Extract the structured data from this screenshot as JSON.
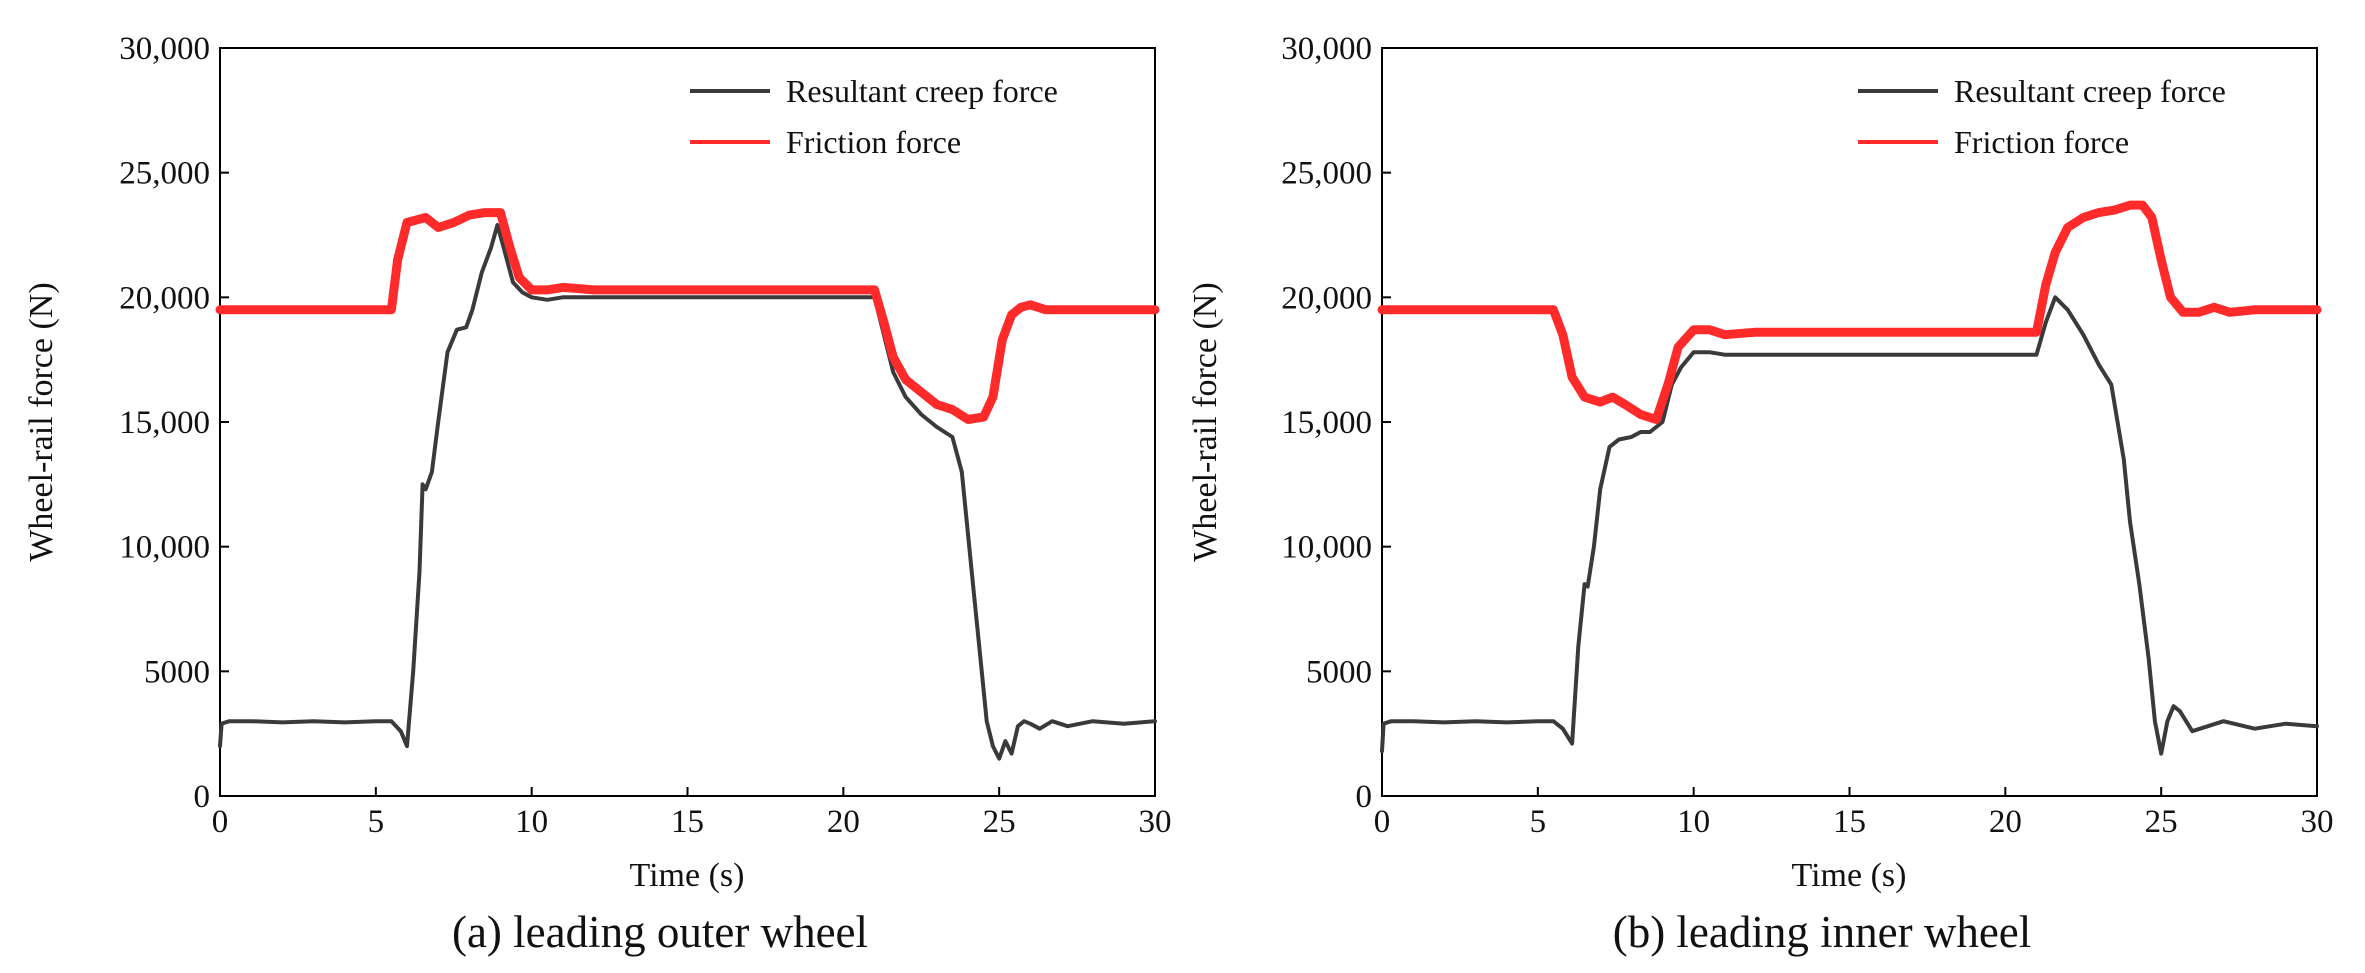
{
  "chart_data": [
    {
      "type": "line",
      "panel": "a",
      "title": "(a) leading outer wheel",
      "xlabel": "Time (s)",
      "ylabel": "Wheel-rail force (N)",
      "xlim": [
        0,
        30
      ],
      "ylim": [
        0,
        30000
      ],
      "x_ticks": [
        0,
        5,
        10,
        15,
        20,
        25,
        30
      ],
      "x_tick_labels": [
        "0",
        "5",
        "10",
        "15",
        "20",
        "25",
        "30"
      ],
      "y_ticks": [
        0,
        5000,
        10000,
        15000,
        20000,
        25000,
        30000
      ],
      "y_tick_labels": [
        "0",
        "5000",
        "10,000",
        "15,000",
        "20,000",
        "25,000",
        "30,000"
      ],
      "grid": false,
      "legend_position": "top-right",
      "series": [
        {
          "name": "Resultant creep force",
          "color": "#3a3a3a",
          "x": [
            0,
            0.05,
            0.3,
            1,
            2,
            3,
            4,
            5,
            5.5,
            5.8,
            6.0,
            6.2,
            6.4,
            6.5,
            6.6,
            6.8,
            7.0,
            7.3,
            7.6,
            7.9,
            8.1,
            8.4,
            8.7,
            8.9,
            9.1,
            9.4,
            9.7,
            10.0,
            10.5,
            11,
            12,
            14,
            16,
            18,
            20,
            21,
            21.3,
            21.6,
            22,
            22.5,
            23,
            23.5,
            23.8,
            24.0,
            24.2,
            24.4,
            24.6,
            24.8,
            25.0,
            25.2,
            25.4,
            25.6,
            25.8,
            26.0,
            26.3,
            26.7,
            27.2,
            28,
            29,
            30
          ],
          "values": [
            2000,
            2900,
            3000,
            3000,
            2950,
            3000,
            2950,
            3000,
            3000,
            2600,
            2000,
            5000,
            9000,
            12500,
            12300,
            13000,
            15000,
            17800,
            18700,
            18800,
            19500,
            21000,
            22000,
            22900,
            22000,
            20600,
            20200,
            20000,
            19900,
            20000,
            20000,
            20000,
            20000,
            20000,
            20000,
            20000,
            18500,
            17000,
            16000,
            15300,
            14800,
            14400,
            13000,
            10500,
            8000,
            5500,
            3000,
            2000,
            1500,
            2200,
            1700,
            2800,
            3000,
            2900,
            2700,
            3000,
            2800,
            3000,
            2900,
            3000
          ]
        },
        {
          "name": "Friction force",
          "color": "#ff2a2a",
          "x": [
            0,
            1,
            2,
            3,
            4,
            5,
            5.5,
            5.7,
            6.0,
            6.3,
            6.6,
            7.0,
            7.5,
            8.0,
            8.5,
            9.0,
            9.3,
            9.6,
            10.0,
            10.5,
            11,
            12,
            14,
            16,
            18,
            20,
            21,
            21.3,
            21.6,
            22,
            22.5,
            23,
            23.5,
            24,
            24.5,
            24.8,
            25.1,
            25.4,
            25.7,
            26.0,
            26.5,
            27,
            28,
            29,
            30
          ],
          "values": [
            19500,
            19500,
            19500,
            19500,
            19500,
            19500,
            19500,
            21500,
            23000,
            23100,
            23200,
            22800,
            23000,
            23300,
            23400,
            23400,
            22000,
            20800,
            20300,
            20300,
            20400,
            20300,
            20300,
            20300,
            20300,
            20300,
            20300,
            19000,
            17600,
            16700,
            16200,
            15700,
            15500,
            15100,
            15200,
            16000,
            18300,
            19300,
            19600,
            19700,
            19500,
            19500,
            19500,
            19500,
            19500
          ]
        }
      ]
    },
    {
      "type": "line",
      "panel": "b",
      "title": "(b) leading inner wheel",
      "xlabel": "Time (s)",
      "ylabel": "Wheel-rail force (N)",
      "xlim": [
        0,
        30
      ],
      "ylim": [
        0,
        30000
      ],
      "x_ticks": [
        0,
        5,
        10,
        15,
        20,
        25,
        30
      ],
      "x_tick_labels": [
        "0",
        "5",
        "10",
        "15",
        "20",
        "25",
        "30"
      ],
      "y_ticks": [
        0,
        5000,
        10000,
        15000,
        20000,
        25000,
        30000
      ],
      "y_tick_labels": [
        "0",
        "5000",
        "10,000",
        "15,000",
        "20,000",
        "25,000",
        "30,000"
      ],
      "grid": false,
      "legend_position": "top-right",
      "series": [
        {
          "name": "Resultant creep force",
          "color": "#3a3a3a",
          "x": [
            0,
            0.05,
            0.3,
            1,
            2,
            3,
            4,
            5,
            5.5,
            5.8,
            6.1,
            6.3,
            6.5,
            6.6,
            6.8,
            7.0,
            7.3,
            7.6,
            8.0,
            8.3,
            8.6,
            9.0,
            9.3,
            9.6,
            10.0,
            10.5,
            11,
            12,
            14,
            16,
            18,
            20,
            21,
            21.3,
            21.6,
            22,
            22.5,
            23,
            23.4,
            23.8,
            24.0,
            24.3,
            24.6,
            24.8,
            25.0,
            25.2,
            25.4,
            25.6,
            25.8,
            26.0,
            26.5,
            27,
            28,
            29,
            30
          ],
          "values": [
            1800,
            2900,
            3000,
            3000,
            2950,
            3000,
            2950,
            3000,
            3000,
            2700,
            2100,
            6000,
            8500,
            8400,
            10000,
            12300,
            14000,
            14300,
            14400,
            14600,
            14600,
            15000,
            16500,
            17200,
            17800,
            17800,
            17700,
            17700,
            17700,
            17700,
            17700,
            17700,
            17700,
            19000,
            20000,
            19500,
            18500,
            17300,
            16500,
            13500,
            11000,
            8500,
            5500,
            3000,
            1700,
            3000,
            3600,
            3400,
            3000,
            2600,
            2800,
            3000,
            2700,
            2900,
            2800
          ]
        },
        {
          "name": "Friction force",
          "color": "#ff2a2a",
          "x": [
            0,
            1,
            2,
            3,
            4,
            5,
            5.5,
            5.8,
            6.1,
            6.5,
            7.0,
            7.4,
            7.8,
            8.3,
            8.8,
            9.2,
            9.5,
            10.0,
            10.5,
            11,
            12,
            14,
            16,
            18,
            20,
            21,
            21.3,
            21.6,
            22,
            22.5,
            23,
            23.5,
            24,
            24.4,
            24.7,
            25.0,
            25.3,
            25.7,
            26.2,
            26.7,
            27.2,
            28,
            29,
            30
          ],
          "values": [
            19500,
            19500,
            19500,
            19500,
            19500,
            19500,
            19500,
            18500,
            16800,
            16000,
            15800,
            16000,
            15700,
            15300,
            15100,
            16600,
            18000,
            18700,
            18700,
            18500,
            18600,
            18600,
            18600,
            18600,
            18600,
            18600,
            20500,
            21800,
            22800,
            23200,
            23400,
            23500,
            23700,
            23700,
            23200,
            21500,
            20000,
            19400,
            19400,
            19600,
            19400,
            19500,
            19500,
            19500
          ]
        }
      ]
    }
  ]
}
